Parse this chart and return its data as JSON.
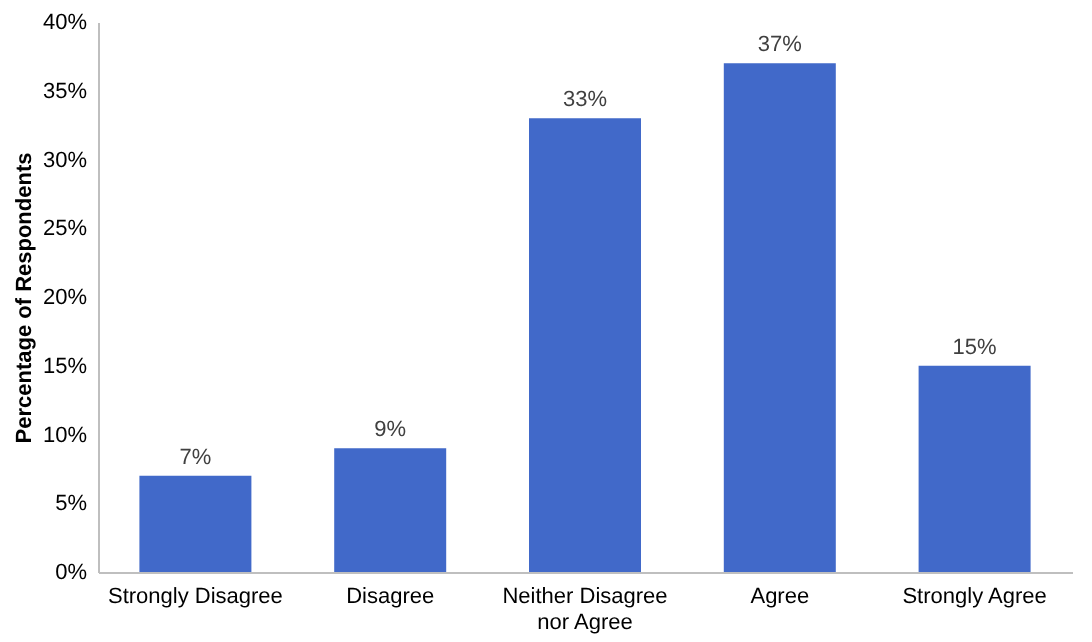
{
  "chart_data": {
    "type": "bar",
    "ylabel": "Percentage of Respondents",
    "categories": [
      "Strongly Disagree",
      "Disagree",
      "Neither Disagree nor Agree",
      "Agree",
      "Strongly Agree"
    ],
    "values": [
      7,
      9,
      33,
      37,
      15
    ],
    "value_labels": [
      "7%",
      "9%",
      "33%",
      "37%",
      "15%"
    ],
    "color": "#4169c9",
    "ylim": [
      0,
      40
    ],
    "yticks": [
      {
        "value": 0,
        "label": "0%"
      },
      {
        "value": 5,
        "label": "5%"
      },
      {
        "value": 10,
        "label": "10%"
      },
      {
        "value": 15,
        "label": "15%"
      },
      {
        "value": 20,
        "label": "20%"
      },
      {
        "value": 25,
        "label": "25%"
      },
      {
        "value": 30,
        "label": "30%"
      },
      {
        "value": 35,
        "label": "35%"
      },
      {
        "value": 40,
        "label": "40%"
      }
    ],
    "grid": false
  }
}
